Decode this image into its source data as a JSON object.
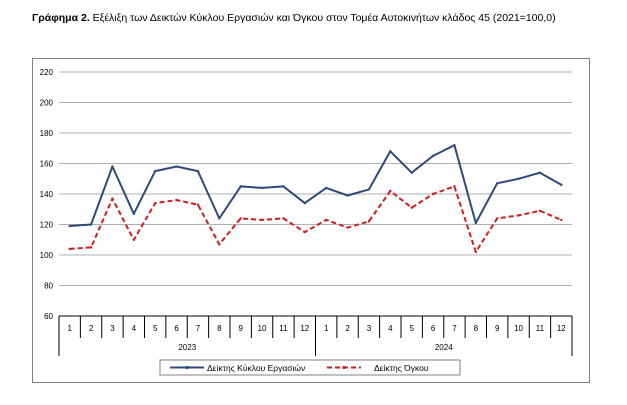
{
  "title": {
    "prefix": "Γράφημα 2.",
    "text": "Εξέλιξη των Δεικτών Κύκλου Εργασιών και Όγκου στον Τομέα Αυτοκινήτων κλάδος 45 (2021=100,0)"
  },
  "colors": {
    "series1": "#2E4A7D",
    "series2": "#CC1F1F",
    "grid": "#B0B0B0",
    "axis": "#000000"
  },
  "chart_data": {
    "type": "line",
    "title": "",
    "xlabel": "",
    "ylabel": "",
    "ylim": [
      60,
      220
    ],
    "yticks": [
      "60",
      "80",
      "100",
      "120",
      "140",
      "160",
      "180",
      "200",
      "220"
    ],
    "categories": [
      "1",
      "2",
      "3",
      "4",
      "5",
      "6",
      "7",
      "8",
      "9",
      "10",
      "11",
      "12",
      "1",
      "2",
      "3",
      "4",
      "5",
      "6",
      "7",
      "8",
      "9",
      "10",
      "11",
      "12"
    ],
    "groups": [
      {
        "label": "2023",
        "count": 12
      },
      {
        "label": "2024",
        "count": 12
      }
    ],
    "grid": true,
    "legend_position": "bottom",
    "series": [
      {
        "name": "Δείκτης Κύκλου Εργασιών",
        "style": "solid",
        "values": [
          119,
          120,
          158,
          127,
          155,
          158,
          155,
          124,
          145,
          144,
          145,
          134,
          144,
          139,
          143,
          168,
          154,
          165,
          172,
          121,
          147,
          150,
          154,
          146
        ]
      },
      {
        "name": "Δείκτης Όγκου",
        "style": "dashed",
        "values": [
          104,
          105,
          137,
          110,
          134,
          136,
          133,
          107,
          124,
          123,
          124,
          115,
          123,
          118,
          122,
          142,
          131,
          140,
          145,
          102,
          124,
          126,
          129,
          123
        ]
      }
    ]
  }
}
